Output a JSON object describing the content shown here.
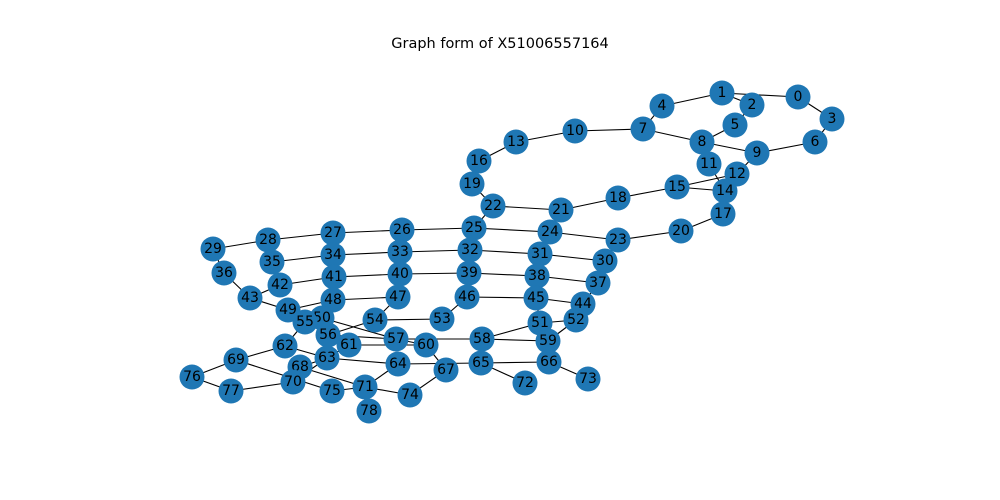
{
  "title": "Graph form of X51006557164",
  "colors": {
    "node": "#1f77b4",
    "edge": "#000000",
    "label": "#000000"
  },
  "graph": {
    "nodes": [
      {
        "id": "0"
      },
      {
        "id": "1"
      },
      {
        "id": "2"
      },
      {
        "id": "3"
      },
      {
        "id": "4"
      },
      {
        "id": "5"
      },
      {
        "id": "6"
      },
      {
        "id": "7"
      },
      {
        "id": "8"
      },
      {
        "id": "9"
      },
      {
        "id": "10"
      },
      {
        "id": "11"
      },
      {
        "id": "12"
      },
      {
        "id": "13"
      },
      {
        "id": "14"
      },
      {
        "id": "15"
      },
      {
        "id": "16"
      },
      {
        "id": "17"
      },
      {
        "id": "18"
      },
      {
        "id": "19"
      },
      {
        "id": "20"
      },
      {
        "id": "21"
      },
      {
        "id": "22"
      },
      {
        "id": "23"
      },
      {
        "id": "24"
      },
      {
        "id": "25"
      },
      {
        "id": "26"
      },
      {
        "id": "27"
      },
      {
        "id": "28"
      },
      {
        "id": "29"
      },
      {
        "id": "30"
      },
      {
        "id": "31"
      },
      {
        "id": "32"
      },
      {
        "id": "33"
      },
      {
        "id": "34"
      },
      {
        "id": "35"
      },
      {
        "id": "36"
      },
      {
        "id": "37"
      },
      {
        "id": "38"
      },
      {
        "id": "39"
      },
      {
        "id": "40"
      },
      {
        "id": "41"
      },
      {
        "id": "42"
      },
      {
        "id": "43"
      },
      {
        "id": "44"
      },
      {
        "id": "45"
      },
      {
        "id": "46"
      },
      {
        "id": "47"
      },
      {
        "id": "48"
      },
      {
        "id": "49"
      },
      {
        "id": "50"
      },
      {
        "id": "51"
      },
      {
        "id": "52"
      },
      {
        "id": "53"
      },
      {
        "id": "54"
      },
      {
        "id": "55"
      },
      {
        "id": "56"
      },
      {
        "id": "57"
      },
      {
        "id": "58"
      },
      {
        "id": "59"
      },
      {
        "id": "60"
      },
      {
        "id": "61"
      },
      {
        "id": "62"
      },
      {
        "id": "63"
      },
      {
        "id": "64"
      },
      {
        "id": "65"
      },
      {
        "id": "66"
      },
      {
        "id": "67"
      },
      {
        "id": "68"
      },
      {
        "id": "69"
      },
      {
        "id": "70"
      },
      {
        "id": "71"
      },
      {
        "id": "72"
      },
      {
        "id": "73"
      },
      {
        "id": "74"
      },
      {
        "id": "75"
      },
      {
        "id": "76"
      },
      {
        "id": "77"
      },
      {
        "id": "78"
      }
    ],
    "edges": [
      [
        "0",
        "1"
      ],
      [
        "0",
        "3"
      ],
      [
        "1",
        "2"
      ],
      [
        "1",
        "4"
      ],
      [
        "2",
        "5"
      ],
      [
        "3",
        "6"
      ],
      [
        "4",
        "7"
      ],
      [
        "5",
        "8"
      ],
      [
        "6",
        "9"
      ],
      [
        "7",
        "8"
      ],
      [
        "7",
        "10"
      ],
      [
        "8",
        "9"
      ],
      [
        "8",
        "11"
      ],
      [
        "9",
        "12"
      ],
      [
        "10",
        "13"
      ],
      [
        "11",
        "14"
      ],
      [
        "12",
        "14"
      ],
      [
        "12",
        "15"
      ],
      [
        "13",
        "16"
      ],
      [
        "14",
        "15"
      ],
      [
        "14",
        "17"
      ],
      [
        "15",
        "18"
      ],
      [
        "16",
        "19"
      ],
      [
        "17",
        "20"
      ],
      [
        "18",
        "21"
      ],
      [
        "19",
        "22"
      ],
      [
        "20",
        "23"
      ],
      [
        "21",
        "22"
      ],
      [
        "21",
        "24"
      ],
      [
        "22",
        "25"
      ],
      [
        "23",
        "24"
      ],
      [
        "23",
        "30"
      ],
      [
        "24",
        "25"
      ],
      [
        "24",
        "31"
      ],
      [
        "25",
        "26"
      ],
      [
        "25",
        "32"
      ],
      [
        "26",
        "27"
      ],
      [
        "27",
        "28"
      ],
      [
        "27",
        "34"
      ],
      [
        "28",
        "29"
      ],
      [
        "28",
        "35"
      ],
      [
        "29",
        "36"
      ],
      [
        "30",
        "31"
      ],
      [
        "30",
        "37"
      ],
      [
        "31",
        "32"
      ],
      [
        "31",
        "38"
      ],
      [
        "32",
        "33"
      ],
      [
        "32",
        "39"
      ],
      [
        "33",
        "34"
      ],
      [
        "33",
        "40"
      ],
      [
        "34",
        "35"
      ],
      [
        "34",
        "41"
      ],
      [
        "35",
        "42"
      ],
      [
        "36",
        "43"
      ],
      [
        "37",
        "38"
      ],
      [
        "37",
        "44"
      ],
      [
        "38",
        "39"
      ],
      [
        "38",
        "45"
      ],
      [
        "39",
        "40"
      ],
      [
        "39",
        "46"
      ],
      [
        "40",
        "41"
      ],
      [
        "40",
        "47"
      ],
      [
        "41",
        "42"
      ],
      [
        "41",
        "48"
      ],
      [
        "42",
        "43"
      ],
      [
        "43",
        "49"
      ],
      [
        "44",
        "45"
      ],
      [
        "44",
        "52"
      ],
      [
        "45",
        "46"
      ],
      [
        "45",
        "51"
      ],
      [
        "46",
        "53"
      ],
      [
        "47",
        "48"
      ],
      [
        "47",
        "54"
      ],
      [
        "48",
        "49"
      ],
      [
        "48",
        "55"
      ],
      [
        "49",
        "50"
      ],
      [
        "50",
        "57"
      ],
      [
        "50",
        "61"
      ],
      [
        "51",
        "52"
      ],
      [
        "51",
        "58"
      ],
      [
        "52",
        "59"
      ],
      [
        "53",
        "54"
      ],
      [
        "54",
        "56"
      ],
      [
        "55",
        "62"
      ],
      [
        "56",
        "57"
      ],
      [
        "57",
        "58"
      ],
      [
        "57",
        "60"
      ],
      [
        "58",
        "59"
      ],
      [
        "60",
        "61"
      ],
      [
        "60",
        "67"
      ],
      [
        "61",
        "63"
      ],
      [
        "62",
        "63"
      ],
      [
        "62",
        "69"
      ],
      [
        "63",
        "64"
      ],
      [
        "63",
        "68"
      ],
      [
        "63",
        "70"
      ],
      [
        "64",
        "65"
      ],
      [
        "64",
        "71"
      ],
      [
        "65",
        "66"
      ],
      [
        "65",
        "72"
      ],
      [
        "66",
        "73"
      ],
      [
        "67",
        "74"
      ],
      [
        "68",
        "70"
      ],
      [
        "68",
        "71"
      ],
      [
        "69",
        "75"
      ],
      [
        "70",
        "77"
      ],
      [
        "71",
        "74"
      ],
      [
        "71",
        "75"
      ],
      [
        "71",
        "78"
      ],
      [
        "76",
        "77"
      ],
      [
        "76",
        "69"
      ]
    ]
  }
}
